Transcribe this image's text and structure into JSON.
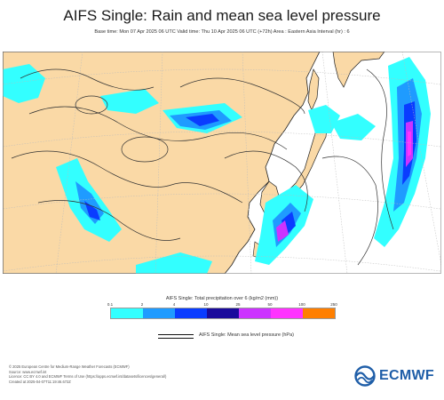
{
  "title": "AIFS Single: Rain and mean sea level pressure",
  "subtitle": "Base time: Mon 07 Apr 2025 06 UTC Valid time: Thu 10 Apr 2025 06 UTC (+72h) Area : Eastern Asia Interval (hr) : 6",
  "legend": {
    "title": "AIFS Single: Total precipitation over 6 (kg/m2 (mm))",
    "ticks": [
      "0.1",
      "2",
      "4",
      "10",
      "25",
      "50",
      "100",
      "250"
    ],
    "colors": [
      "#33ffff",
      "#1f9bff",
      "#0a3cff",
      "#1a0a9c",
      "#cc33ff",
      "#ff33ff",
      "#ff7f00",
      "#ff0000"
    ]
  },
  "isobar_key": {
    "label": "AIFS Single: Mean sea level pressure (hPa)"
  },
  "footer": {
    "lines": [
      "© 2025 European Centre for Medium-Range Weather Forecasts (ECMWF)",
      "Source: www.ecmwf.int",
      "Licence: CC BY 4.0 and ECMWF Terms of Use (https://apps.ecmwf.int/datasets/licences/general/)",
      "Created at 2025-04-07T11:19:46.672Z"
    ]
  },
  "logo": {
    "text": "ECMWF",
    "icon": "ecmwf-logo-icon",
    "color": "#1f5ea8"
  },
  "map": {
    "colors": {
      "land": "#fad9a6",
      "sea": "#ffffff",
      "coast": "#222222",
      "isobar": "#333333",
      "grid": "#bcbcbc"
    }
  }
}
